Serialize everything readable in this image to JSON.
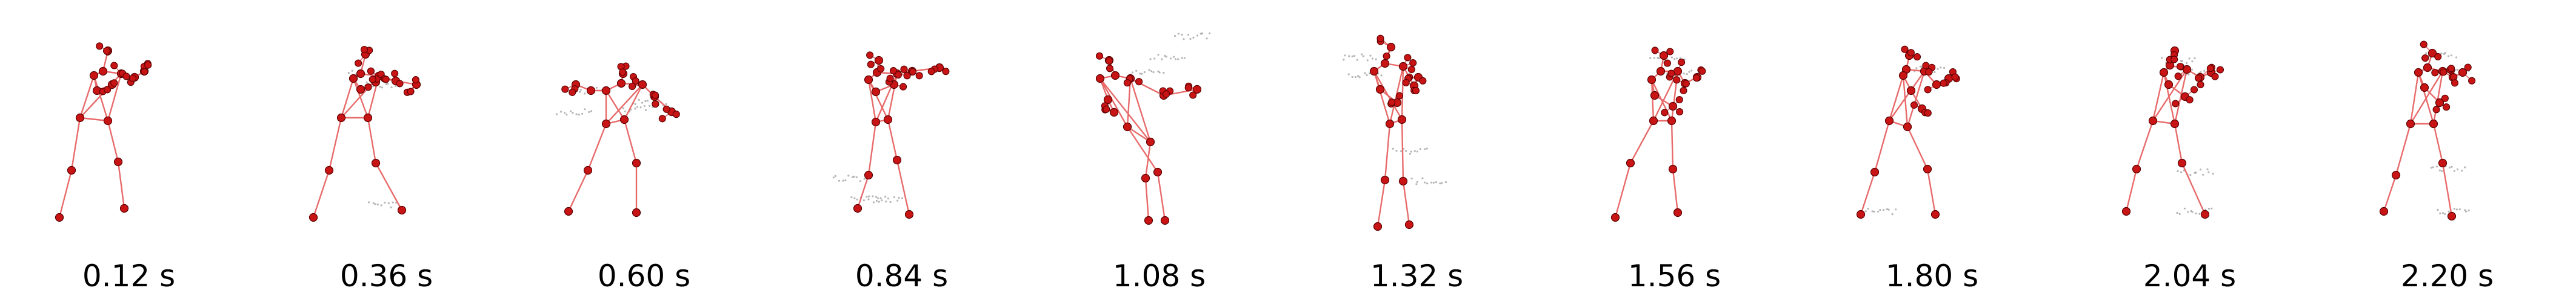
{
  "colors": {
    "joint": "#c81414",
    "joint_edge": "#5a0000",
    "bone": "#e86a6a",
    "trail": "#7a7a7a",
    "label": "#000000",
    "background": "#ffffff"
  },
  "frames": [
    {
      "label": "0.12 s"
    },
    {
      "label": "0.36 s"
    },
    {
      "label": "0.60 s"
    },
    {
      "label": "0.84 s"
    },
    {
      "label": "1.08 s"
    },
    {
      "label": "1.32 s"
    },
    {
      "label": "1.56 s"
    },
    {
      "label": "1.80 s"
    },
    {
      "label": "2.04 s"
    },
    {
      "label": "2.20 s"
    }
  ]
}
